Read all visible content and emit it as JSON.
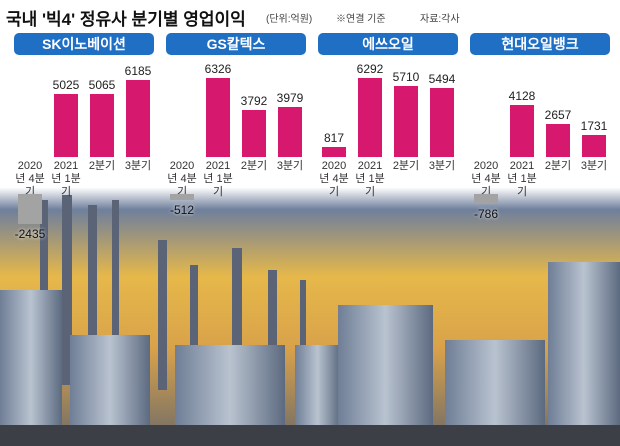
{
  "title": "국내 '빅4' 정유사 분기별 영업이익",
  "unit": "(단위:억원)",
  "note": "※연결 기준",
  "source": "자료:각사",
  "chart_data": [
    {
      "type": "bar",
      "title": "SK이노베이션",
      "categories": [
        "2020년 4분기",
        "2021년 1분기",
        "2분기",
        "3분기"
      ],
      "values": [
        -2435,
        5025,
        5065,
        6185
      ],
      "color": "#d6186e",
      "negative_color": "#a3a3a3"
    },
    {
      "type": "bar",
      "title": "GS칼텍스",
      "categories": [
        "2020년 4분기",
        "2021년 1분기",
        "2분기",
        "3분기"
      ],
      "values": [
        -512,
        6326,
        3792,
        3979
      ],
      "color": "#d6186e",
      "negative_color": "#a3a3a3"
    },
    {
      "type": "bar",
      "title": "에쓰오일",
      "categories": [
        "2020년 4분기",
        "2021년 1분기",
        "2분기",
        "3분기"
      ],
      "values": [
        817,
        6292,
        5710,
        5494
      ],
      "color": "#d6186e",
      "negative_color": "#a3a3a3"
    },
    {
      "type": "bar",
      "title": "현대오일뱅크",
      "categories": [
        "2020년 4분기",
        "2021년 1분기",
        "2분기",
        "3분기"
      ],
      "values": [
        -786,
        4128,
        2657,
        1731
      ],
      "color": "#d6186e",
      "negative_color": "#a3a3a3"
    }
  ]
}
